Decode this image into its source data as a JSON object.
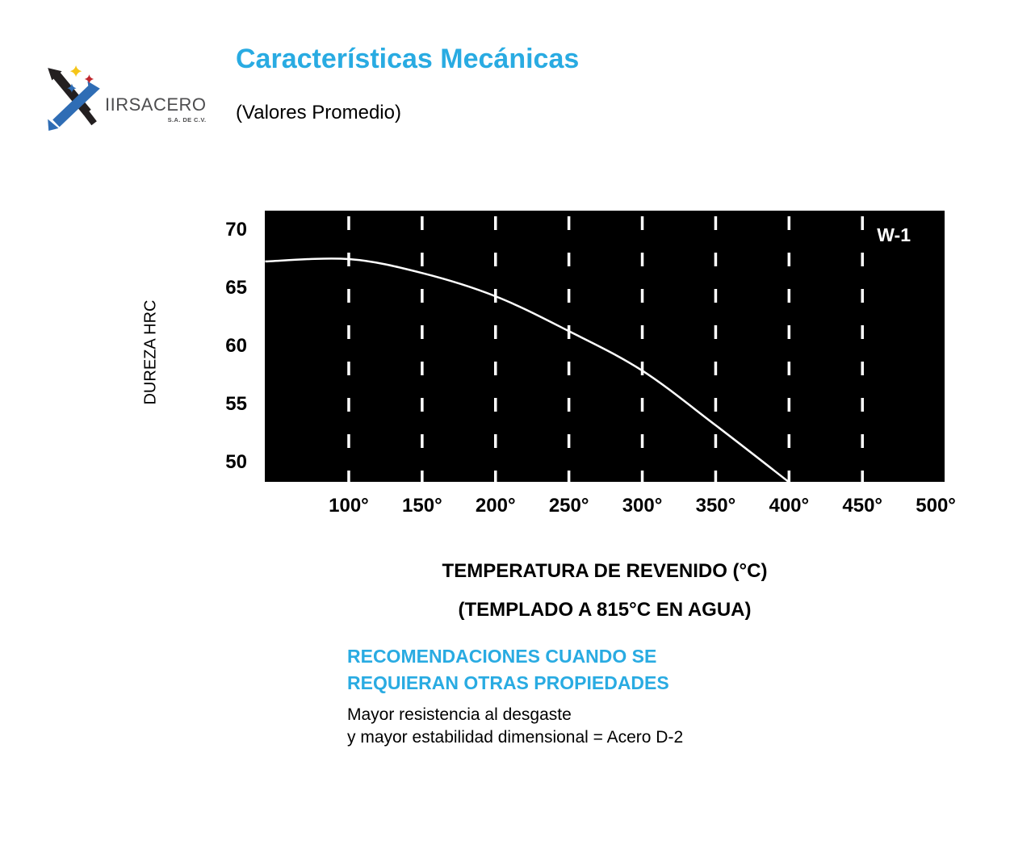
{
  "brand": {
    "name": "IIRSACERO",
    "legal": "S.A. DE C.V."
  },
  "header": {
    "title": "Características Mecánicas",
    "subtitle": "(Valores Promedio)"
  },
  "colors": {
    "accent_blue": "#29abe2",
    "logo_blue": "#2f6db5",
    "logo_black": "#231f20",
    "logo_yellow": "#f5c518",
    "logo_red": "#c0272d",
    "chart_background": "#000000",
    "chart_line": "#ffffff"
  },
  "chart_data": {
    "type": "line",
    "title": "",
    "legend_label": "W-1",
    "ylabel": "DUREZA HRC",
    "xlabel": "TEMPERATURA DE REVENIDO (°C)",
    "xlabel_note": "(TEMPLADO A 815°C EN AGUA)",
    "x_tick_labels": [
      "100°",
      "150°",
      "200°",
      "250°",
      "300°",
      "350°",
      "400°",
      "450°",
      "500°"
    ],
    "x_tick_values": [
      100,
      150,
      200,
      250,
      300,
      350,
      400,
      450,
      500
    ],
    "y_tick_labels": [
      "70",
      "65",
      "60",
      "55",
      "50"
    ],
    "y_tick_values": [
      70,
      65,
      60,
      55,
      50
    ],
    "xlim": [
      42.8,
      506
    ],
    "ylim": [
      48.33,
      71.67
    ],
    "gridlines_x": [
      100,
      150,
      200,
      250,
      300,
      350,
      400,
      450
    ],
    "grid_style": "dashed-vertical-white",
    "background": "black",
    "line_color": "white",
    "series": [
      {
        "name": "W-1",
        "x": [
          43,
          100,
          150,
          200,
          250,
          300,
          350,
          400
        ],
        "y": [
          67.3,
          67.5,
          66.3,
          64.3,
          61.3,
          57.9,
          53.2,
          48.3
        ]
      }
    ]
  },
  "recommendations": {
    "heading_line1": "RECOMENDACIONES CUANDO SE",
    "heading_line2": "REQUIERAN OTRAS PROPIEDADES",
    "body_line1": "Mayor resistencia al desgaste",
    "body_line2": "y mayor estabilidad dimensional = Acero D-2"
  }
}
